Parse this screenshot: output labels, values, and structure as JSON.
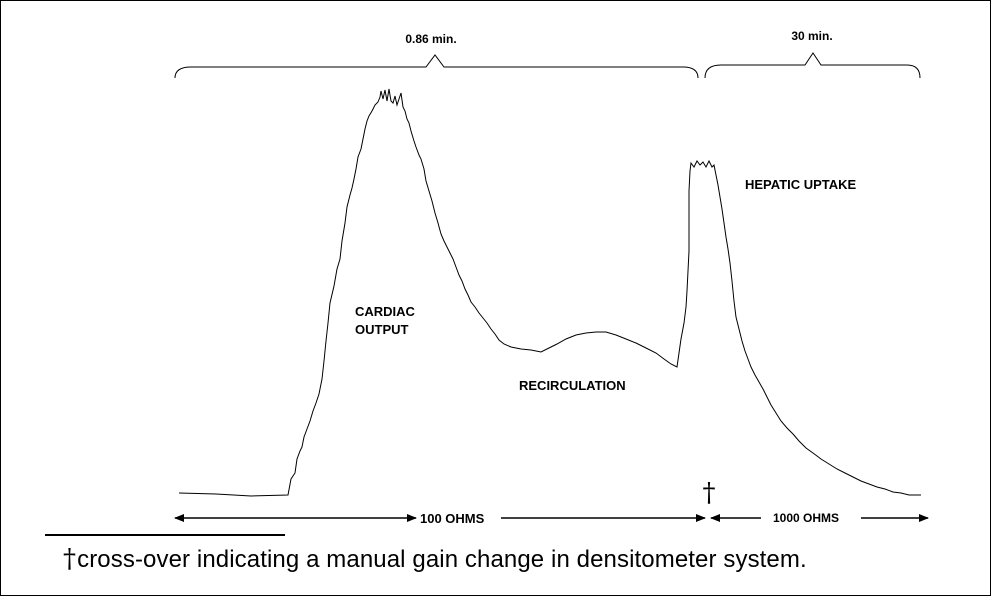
{
  "figure": {
    "bracket_left_label": "0.86 min.",
    "bracket_right_label": "30 min.",
    "peak_labels": {
      "cardiac_line1": "CARDIAC",
      "cardiac_line2": "OUTPUT",
      "recirculation": "RECIRCULATION",
      "hepatic": "HEPATIC UPTAKE"
    },
    "dagger_symbol": "†",
    "scale_left": "100 OHMS",
    "scale_right": "1000 OHMS"
  },
  "caption": {
    "symbol": "†",
    "text": "cross-over indicating a manual gain change in densitometer system."
  },
  "colors": {
    "line": "#000000",
    "background": "#ffffff"
  }
}
